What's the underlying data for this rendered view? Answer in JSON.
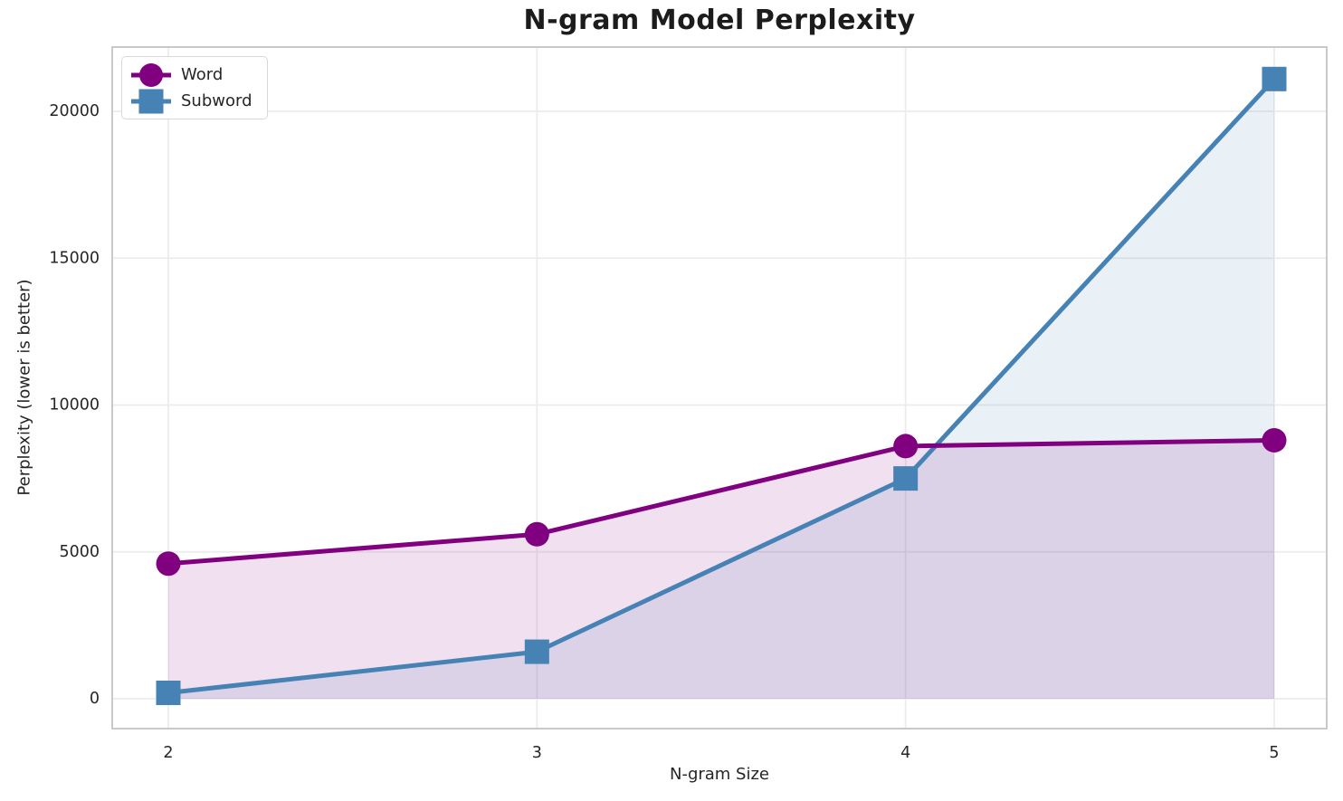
{
  "chart_data": {
    "type": "line",
    "title": "N-gram Model Perplexity",
    "xlabel": "N-gram Size",
    "ylabel": "Perplexity (lower is better)",
    "x": [
      2,
      3,
      4,
      5
    ],
    "series": [
      {
        "name": "Word",
        "values": [
          4600,
          5600,
          8600,
          8800
        ],
        "color": "#800080",
        "marker": "circle",
        "line_width": 5,
        "fill_to_zero": true
      },
      {
        "name": "Subword",
        "values": [
          200,
          1600,
          7500,
          21100
        ],
        "color": "#4682b4",
        "marker": "square",
        "line_width": 5,
        "fill_to_zero": true
      }
    ],
    "x_ticks": [
      "2",
      "3",
      "4",
      "5"
    ],
    "y_ticks": [
      0,
      5000,
      10000,
      15000,
      20000
    ],
    "xlim": [
      1.85,
      5.15
    ],
    "ylim": [
      -1020,
      22190
    ],
    "grid": true,
    "legend_position": "upper left",
    "fill_alpha": 0.12,
    "styles": {
      "grid_color": "#ececec",
      "spine_color": "#c9c9c9",
      "tick_label_color": "#262626",
      "title_color": "#1c1c1c",
      "background": "#ffffff"
    }
  }
}
